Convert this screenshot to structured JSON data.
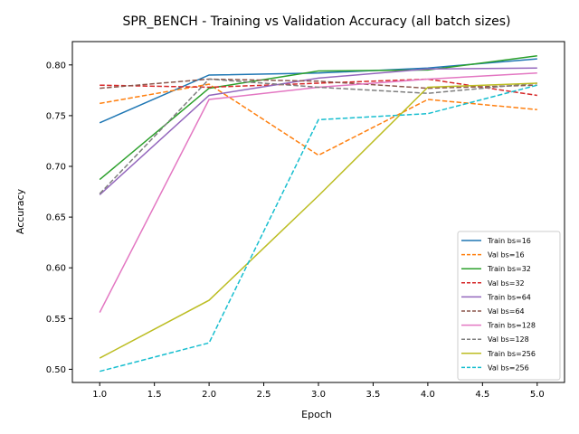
{
  "chart_data": {
    "type": "line",
    "title": "SPR_BENCH - Training vs Validation Accuracy (all batch sizes)",
    "xlabel": "Epoch",
    "ylabel": "Accuracy",
    "xlim": [
      0.75,
      5.25
    ],
    "ylim": [
      0.487,
      0.823
    ],
    "xticks": [
      1.0,
      1.5,
      2.0,
      2.5,
      3.0,
      3.5,
      4.0,
      4.5,
      5.0
    ],
    "xtick_labels": [
      "1.0",
      "1.5",
      "2.0",
      "2.5",
      "3.0",
      "3.5",
      "4.0",
      "4.5",
      "5.0"
    ],
    "yticks": [
      0.5,
      0.55,
      0.6,
      0.65,
      0.7,
      0.75,
      0.8
    ],
    "ytick_labels": [
      "0.50",
      "0.55",
      "0.60",
      "0.65",
      "0.70",
      "0.75",
      "0.80"
    ],
    "grid": false,
    "legend_position": "bottom-right",
    "x": [
      1,
      2,
      3,
      4,
      5
    ],
    "series": [
      {
        "name": "Train bs=16",
        "style": "solid",
        "color": "#1f77b4",
        "values": [
          0.743,
          0.79,
          0.792,
          0.797,
          0.806
        ]
      },
      {
        "name": "Val bs=16",
        "style": "dashed",
        "color": "#ff7f0e",
        "values": [
          0.762,
          0.781,
          0.711,
          0.766,
          0.756
        ]
      },
      {
        "name": "Train bs=32",
        "style": "solid",
        "color": "#2ca02c",
        "values": [
          0.687,
          0.777,
          0.794,
          0.795,
          0.809
        ]
      },
      {
        "name": "Val bs=32",
        "style": "dashed",
        "color": "#d62728",
        "values": [
          0.78,
          0.778,
          0.782,
          0.786,
          0.77
        ]
      },
      {
        "name": "Train bs=64",
        "style": "solid",
        "color": "#9467bd",
        "values": [
          0.672,
          0.77,
          0.787,
          0.796,
          0.797
        ]
      },
      {
        "name": "Val bs=64",
        "style": "dashed",
        "color": "#8c564b",
        "values": [
          0.777,
          0.786,
          0.784,
          0.777,
          0.78
        ]
      },
      {
        "name": "Train bs=128",
        "style": "solid",
        "color": "#e377c2",
        "values": [
          0.556,
          0.766,
          0.778,
          0.786,
          0.792
        ]
      },
      {
        "name": "Val bs=128",
        "style": "dashed",
        "color": "#7f7f7f",
        "values": [
          0.673,
          0.786,
          0.778,
          0.772,
          0.782
        ]
      },
      {
        "name": "Train bs=256",
        "style": "solid",
        "color": "#bcbd22",
        "values": [
          0.511,
          0.568,
          0.671,
          0.778,
          0.782
        ]
      },
      {
        "name": "Val bs=256",
        "style": "dashed",
        "color": "#17becf",
        "values": [
          0.498,
          0.526,
          0.746,
          0.752,
          0.78
        ]
      }
    ]
  }
}
